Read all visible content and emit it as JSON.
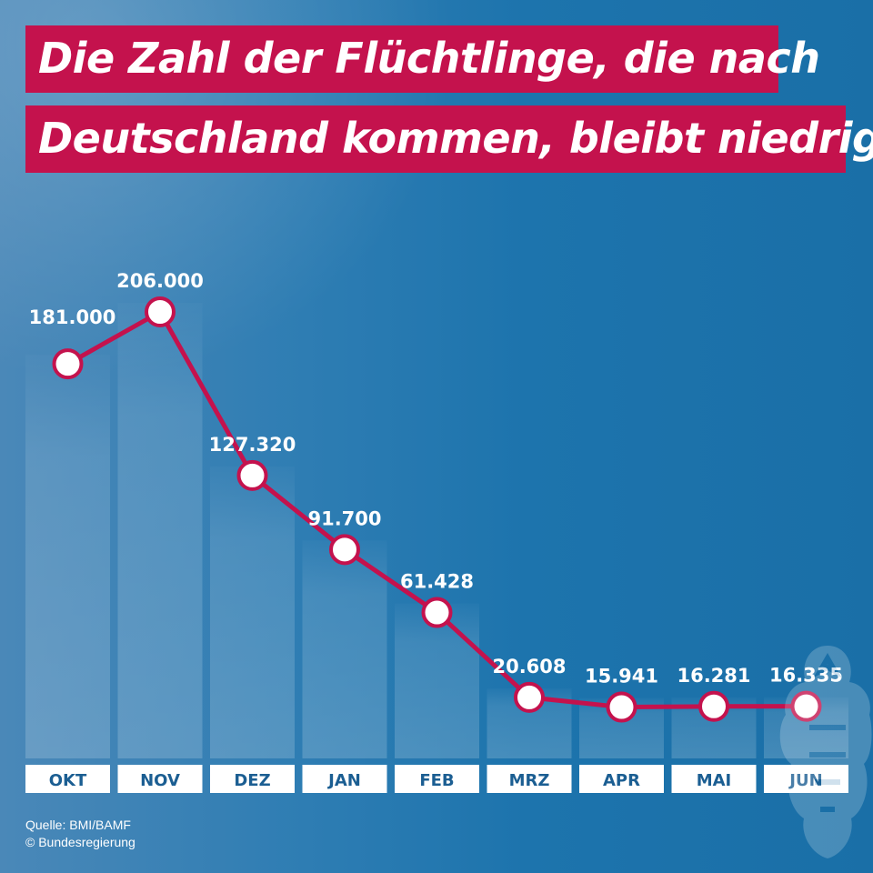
{
  "title": {
    "line1": "Die Zahl der Flüchtlinge, die nach",
    "line2": "Deutschland kommen, bleibt niedrig:"
  },
  "source": {
    "line1": "Quelle: BMI/BAMF",
    "line2": "© Bundesregierung"
  },
  "colors": {
    "line": "#c4124d",
    "marker_fill": "#ffffff",
    "bar": "#ffffff",
    "title_bg": "#c4124d"
  },
  "chart_data": {
    "type": "line",
    "categories": [
      "OKT",
      "NOV",
      "DEZ",
      "JAN",
      "FEB",
      "MRZ",
      "APR",
      "MAI",
      "JUN"
    ],
    "values": [
      181000,
      206000,
      127320,
      91700,
      61428,
      20608,
      15941,
      16281,
      16335
    ],
    "value_labels": [
      "181.000",
      "206.000",
      "127.320",
      "91.700",
      "61.428",
      "20.608",
      "15.941",
      "16.281",
      "16.335"
    ],
    "background_bars": [
      181000,
      206000,
      127320,
      91700,
      61428,
      20608,
      15941,
      16281,
      16335
    ],
    "ylim": [
      0,
      206000
    ],
    "grid": false,
    "legend": "none"
  }
}
